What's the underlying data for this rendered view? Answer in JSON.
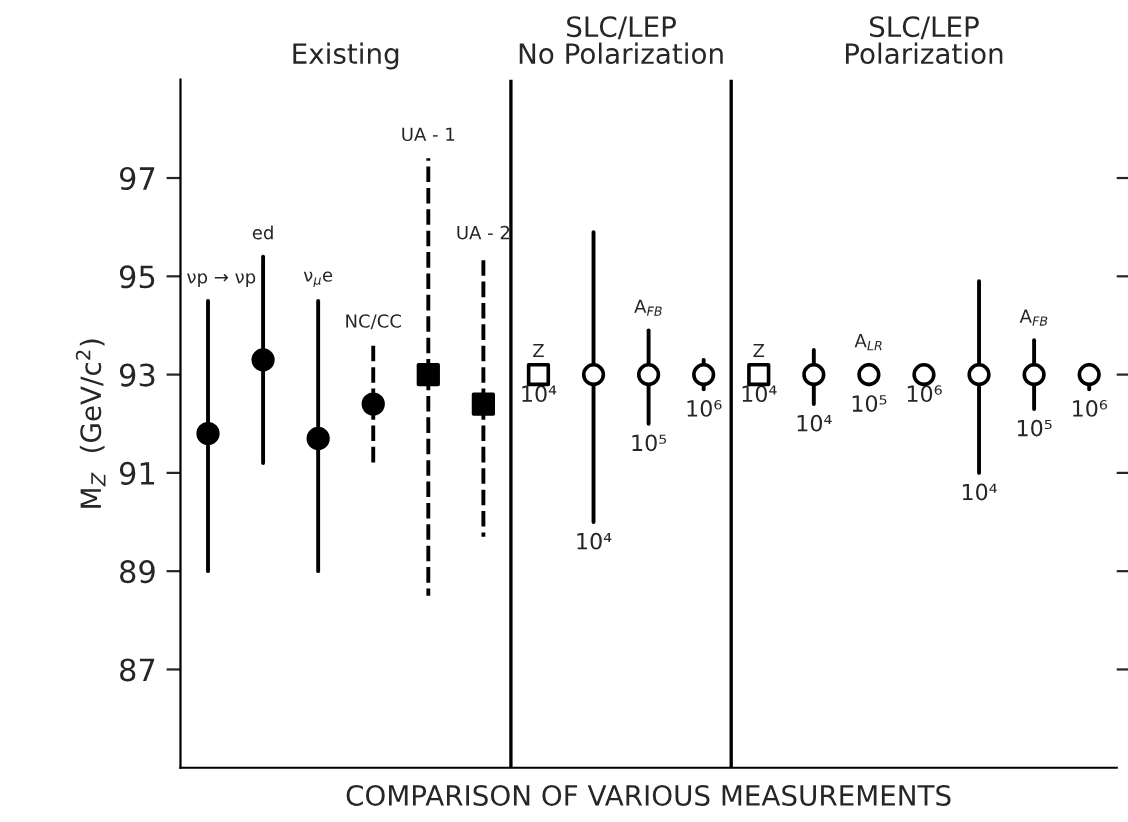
{
  "chart_data": {
    "type": "scatter",
    "xlabel": "COMPARISON OF VARIOUS MEASUREMENTS",
    "ylabel": "M$_{Z}$  (GeV/c$^{2}$)",
    "categories": [
      "νp → νp",
      "ed",
      "ν$_{μ}$e",
      "NC/CC",
      "UA - 1",
      "UA - 2",
      "Z",
      null,
      "A$_{FB}$",
      null,
      "Z",
      null,
      "A$_{LR}$",
      null,
      null,
      "A$_{FB}$",
      null
    ],
    "ylim": [
      85,
      99
    ],
    "yticks": [
      87,
      89,
      91,
      93,
      95,
      97
    ],
    "grid": false,
    "legend": false,
    "annotations": [
      "Existing",
      "SLC/LEP\nNo Polarization",
      "SLC/LEP\nPolarization"
    ],
    "series": [
      {
        "color": "#000000",
        "marker": "circle",
        "line_style": "solid",
        "values": [
          91.8,
          93.3,
          91.7,
          null,
          null,
          null,
          null,
          null,
          null,
          null,
          null,
          null,
          null,
          null,
          null,
          null,
          null
        ],
        "errors": [
          [
            89.0,
            94.5
          ],
          [
            91.2,
            95.4
          ],
          [
            89.0,
            94.5
          ],
          null,
          null,
          null,
          null,
          null,
          null,
          null,
          null,
          null,
          null,
          null,
          null,
          null,
          null
        ]
      },
      {
        "color": "#000000",
        "marker": "circle",
        "line_style": "dashed",
        "values": [
          null,
          null,
          null,
          92.4,
          null,
          null,
          null,
          null,
          null,
          null,
          null,
          null,
          null,
          null,
          null,
          null,
          null
        ],
        "errors": [
          null,
          null,
          null,
          [
            91.1,
            93.6
          ],
          null,
          null,
          null,
          null,
          null,
          null,
          null,
          null,
          null,
          null,
          null,
          null,
          null
        ]
      },
      {
        "color": "#000000",
        "marker": "square",
        "line_style": "dashed",
        "values": [
          null,
          null,
          null,
          null,
          93.0,
          92.4,
          null,
          null,
          null,
          null,
          null,
          null,
          null,
          null,
          null,
          null,
          null
        ],
        "errors": [
          null,
          null,
          null,
          null,
          [
            88.5,
            97.4
          ],
          [
            89.7,
            95.4
          ],
          null,
          null,
          null,
          null,
          null,
          null,
          null,
          null,
          null,
          null,
          null
        ]
      },
      {
        "name": "10⁴",
        "color": "#ffffff",
        "marker": "square",
        "values": [
          null,
          null,
          null,
          null,
          null,
          null,
          93.0,
          null,
          null,
          null,
          93.0,
          null,
          null,
          null,
          null,
          null,
          null
        ]
      },
      {
        "name": "10⁴",
        "color": "#ffffff",
        "marker": "circle",
        "line_style": "solid",
        "values": [
          null,
          null,
          null,
          null,
          null,
          null,
          null,
          93.0,
          null,
          null,
          null,
          93.0,
          null,
          null,
          93.0,
          null,
          null
        ],
        "errors": [
          null,
          null,
          null,
          null,
          null,
          null,
          null,
          [
            90.0,
            95.9
          ],
          null,
          null,
          null,
          [
            92.4,
            93.5
          ],
          null,
          null,
          [
            91.0,
            94.9
          ],
          null,
          null
        ]
      },
      {
        "name": "10⁵",
        "color": "#ffffff",
        "marker": "circle",
        "line_style": "solid",
        "values": [
          null,
          null,
          null,
          null,
          null,
          null,
          null,
          null,
          93.0,
          null,
          null,
          null,
          93.0,
          null,
          null,
          93.0,
          null
        ],
        "errors": [
          null,
          null,
          null,
          null,
          null,
          null,
          null,
          null,
          [
            92.0,
            93.9
          ],
          null,
          null,
          null,
          [
            92.8,
            93.2
          ],
          null,
          null,
          [
            92.3,
            93.7
          ],
          null
        ]
      },
      {
        "name": "10⁶",
        "color": "#ffffff",
        "marker": "circle",
        "line_style": "solid",
        "values": [
          null,
          null,
          null,
          null,
          null,
          null,
          null,
          null,
          null,
          93.0,
          null,
          null,
          null,
          93.0,
          null,
          null,
          93.0
        ],
        "errors": [
          null,
          null,
          null,
          null,
          null,
          null,
          null,
          null,
          null,
          [
            92.7,
            93.3
          ],
          null,
          null,
          null,
          null,
          null,
          null,
          [
            92.7,
            93.2
          ]
        ]
      }
    ]
  }
}
